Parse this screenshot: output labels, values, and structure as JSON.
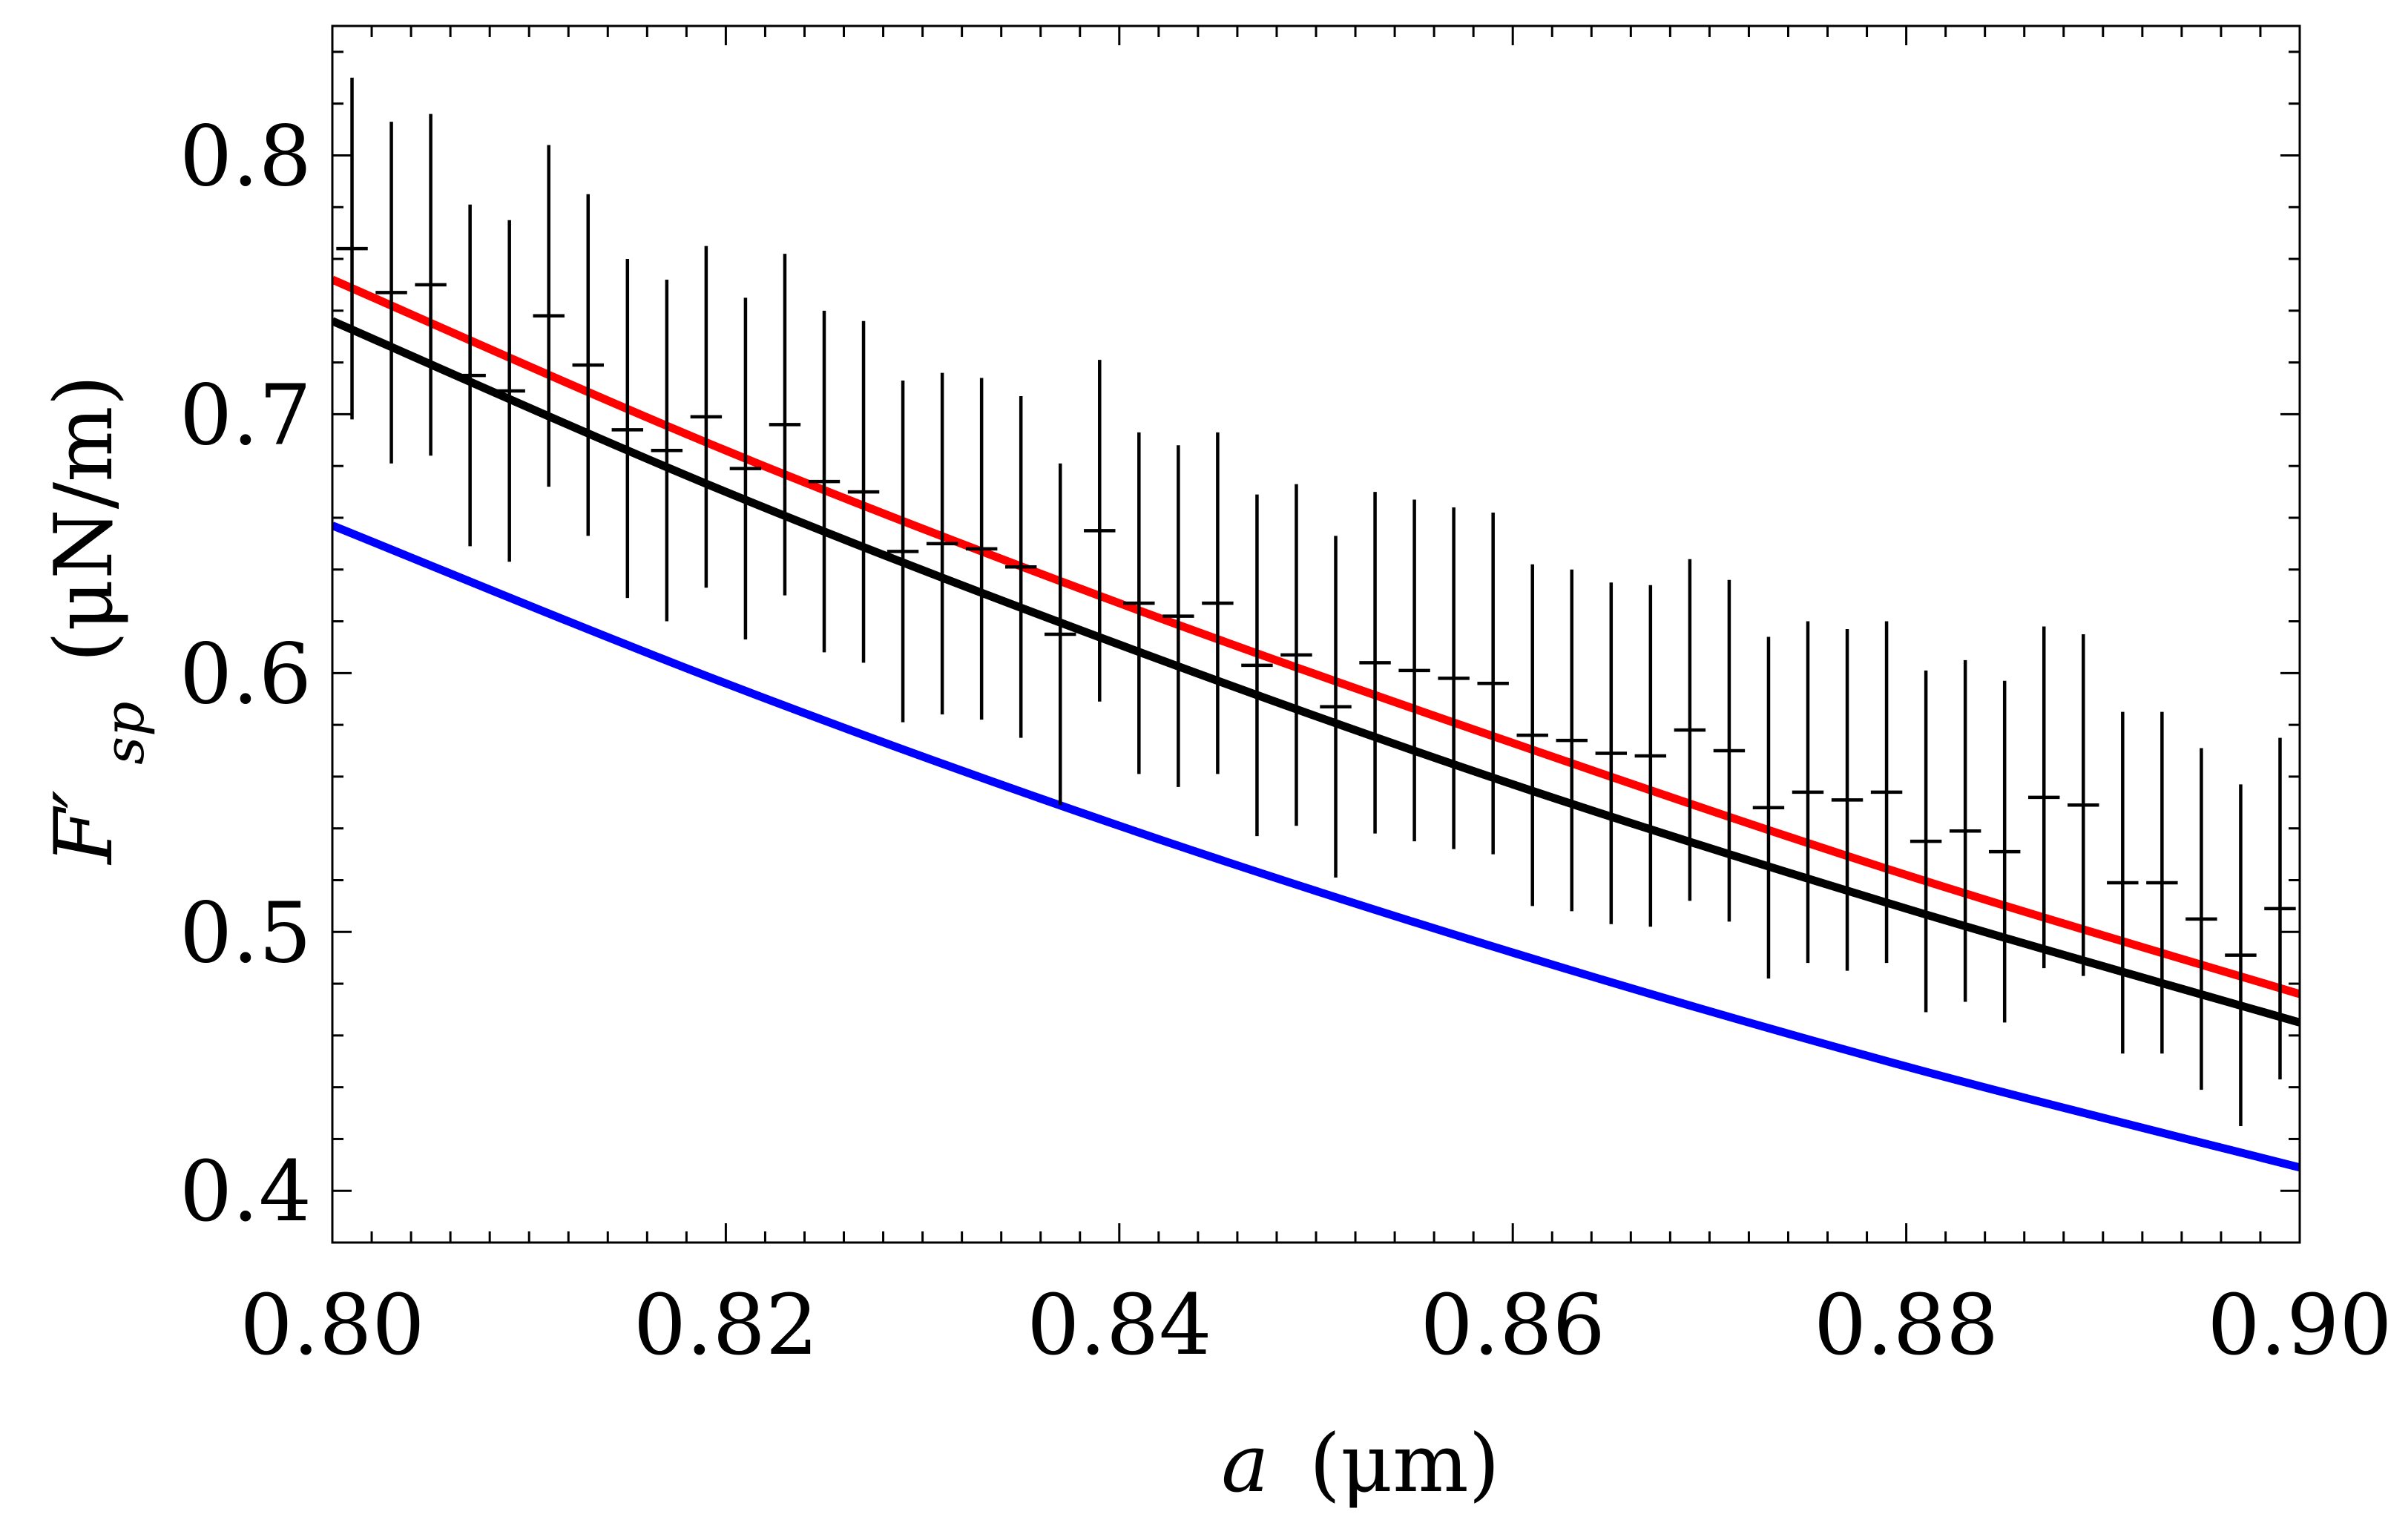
{
  "chart_data": {
    "type": "scatter",
    "title": "",
    "xlabel": {
      "var": "a",
      "unit": "(μm)"
    },
    "ylabel": {
      "var": "F′",
      "sub": "sp",
      "unit": "(μN/m)"
    },
    "xlim": [
      0.8,
      0.9
    ],
    "ylim": [
      0.38,
      0.85
    ],
    "x_ticks": [
      0.8,
      0.82,
      0.84,
      0.86,
      0.88,
      0.9
    ],
    "x_tick_labels": [
      "0.80",
      "0.82",
      "0.84",
      "0.86",
      "0.88",
      "0.90"
    ],
    "y_ticks": [
      0.4,
      0.5,
      0.6,
      0.7,
      0.8
    ],
    "y_tick_labels": [
      "0.4",
      "0.5",
      "0.6",
      "0.7",
      "0.8"
    ],
    "x_minor_step": 0.002,
    "y_minor_step": 0.02,
    "grid": false,
    "series": [
      {
        "name": "red-theory",
        "kind": "line",
        "color": "#ff0000",
        "x": [
          0.8,
          0.82,
          0.84,
          0.86,
          0.88,
          0.9
        ],
        "y": [
          0.752,
          0.686,
          0.627,
          0.573,
          0.522,
          0.476
        ]
      },
      {
        "name": "black-theory",
        "kind": "line",
        "color": "#000000",
        "x": [
          0.8,
          0.82,
          0.84,
          0.86,
          0.88,
          0.9
        ],
        "y": [
          0.736,
          0.67,
          0.611,
          0.557,
          0.509,
          0.465
        ]
      },
      {
        "name": "blue-theory",
        "kind": "line",
        "color": "#0000ff",
        "x": [
          0.8,
          0.82,
          0.84,
          0.86,
          0.88,
          0.9
        ],
        "y": [
          0.657,
          0.596,
          0.541,
          0.492,
          0.448,
          0.409
        ]
      },
      {
        "name": "experiment",
        "kind": "errorbar",
        "color": "#000000",
        "x": [
          0.801,
          0.803,
          0.805,
          0.807,
          0.809,
          0.811,
          0.813,
          0.815,
          0.817,
          0.819,
          0.821,
          0.823,
          0.825,
          0.827,
          0.829,
          0.831,
          0.833,
          0.835,
          0.837,
          0.839,
          0.841,
          0.843,
          0.845,
          0.847,
          0.849,
          0.851,
          0.853,
          0.855,
          0.857,
          0.859,
          0.861,
          0.863,
          0.865,
          0.867,
          0.869,
          0.871,
          0.873,
          0.875,
          0.877,
          0.879,
          0.881,
          0.883,
          0.885,
          0.887,
          0.889,
          0.891,
          0.893,
          0.895,
          0.897,
          0.899
        ],
        "y": [
          0.764,
          0.747,
          0.75,
          0.715,
          0.709,
          0.738,
          0.719,
          0.694,
          0.686,
          0.699,
          0.679,
          0.696,
          0.674,
          0.67,
          0.647,
          0.65,
          0.648,
          0.641,
          0.615,
          0.655,
          0.627,
          0.622,
          0.627,
          0.603,
          0.607,
          0.587,
          0.604,
          0.601,
          0.598,
          0.596,
          0.576,
          0.574,
          0.569,
          0.568,
          0.578,
          0.57,
          0.548,
          0.554,
          0.551,
          0.554,
          0.535,
          0.539,
          0.531,
          0.552,
          0.549,
          0.519,
          0.519,
          0.505,
          0.491,
          0.509
        ],
        "ylow": [
          0.698,
          0.681,
          0.684,
          0.649,
          0.643,
          0.672,
          0.653,
          0.629,
          0.62,
          0.633,
          0.613,
          0.63,
          0.608,
          0.604,
          0.581,
          0.584,
          0.582,
          0.575,
          0.549,
          0.589,
          0.561,
          0.556,
          0.561,
          0.537,
          0.541,
          0.521,
          0.538,
          0.535,
          0.532,
          0.53,
          0.51,
          0.508,
          0.503,
          0.502,
          0.512,
          0.504,
          0.482,
          0.488,
          0.485,
          0.488,
          0.469,
          0.473,
          0.465,
          0.486,
          0.483,
          0.453,
          0.453,
          0.439,
          0.425,
          0.443
        ],
        "yhigh": [
          0.83,
          0.813,
          0.816,
          0.781,
          0.775,
          0.804,
          0.785,
          0.76,
          0.752,
          0.765,
          0.745,
          0.762,
          0.74,
          0.736,
          0.713,
          0.716,
          0.714,
          0.707,
          0.681,
          0.721,
          0.693,
          0.688,
          0.693,
          0.669,
          0.673,
          0.653,
          0.67,
          0.667,
          0.664,
          0.662,
          0.642,
          0.64,
          0.635,
          0.634,
          0.644,
          0.636,
          0.614,
          0.62,
          0.617,
          0.62,
          0.601,
          0.605,
          0.597,
          0.618,
          0.615,
          0.585,
          0.585,
          0.571,
          0.557,
          0.575
        ],
        "xerr": 0.0008
      }
    ]
  }
}
